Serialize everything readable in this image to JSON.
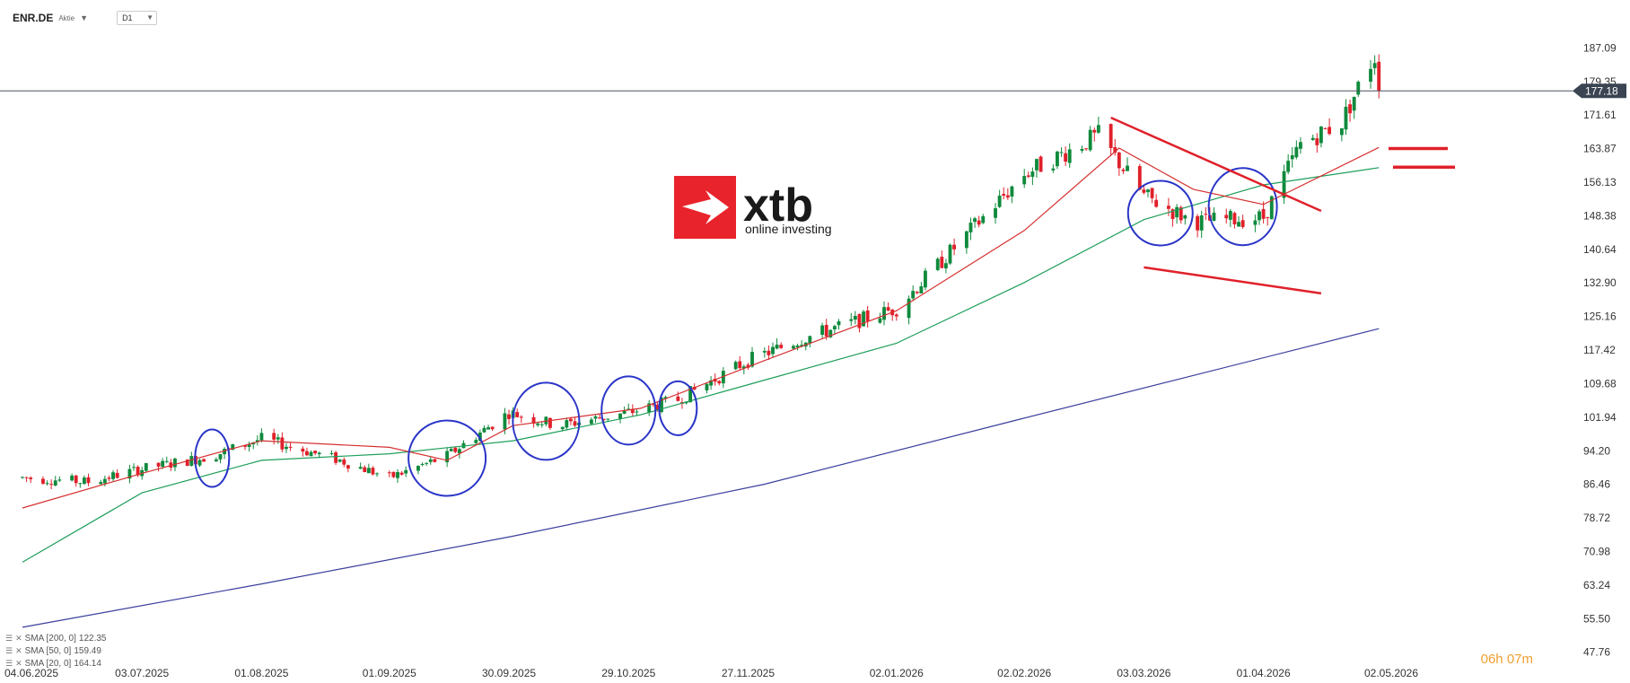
{
  "toolbar": {
    "symbol": "ENR.DE",
    "instrument_type": "Aktie",
    "timeframe": "D1"
  },
  "logo": {
    "brand": "xtb",
    "tagline": "online investing",
    "accent_color": "#e8232b"
  },
  "legend": [
    {
      "label": "SMA [200, 0]",
      "value": "122.35",
      "color": "#3a3f9e"
    },
    {
      "label": "SMA [50, 0]",
      "value": "159.49",
      "color": "#1e9e5a"
    },
    {
      "label": "SMA [20, 0]",
      "value": "164.14",
      "color": "#d63030"
    }
  ],
  "countdown": {
    "hours": "06",
    "h_unit": "h",
    "minutes": "07",
    "m_unit": "m"
  },
  "colors": {
    "bull": "#0f8a3c",
    "bear": "#e0202a",
    "sma200": "#3a3f9e",
    "sma50": "#1e9e5a",
    "sma20": "#d63030",
    "annotation_circle": "#2a35c8",
    "annotation_line": "#e0202a",
    "current_price_bg": "#3a4452"
  },
  "chart_data": {
    "type": "candlestick",
    "title": "",
    "y_ticks": [
      47.76,
      55.5,
      63.24,
      70.98,
      78.72,
      86.46,
      94.2,
      101.94,
      109.68,
      117.42,
      125.16,
      132.9,
      140.64,
      148.38,
      156.13,
      163.87,
      171.61,
      179.35,
      187.09
    ],
    "ylim": [
      45.0,
      194.0
    ],
    "x_ticks": [
      "04.06.2025",
      "03.07.2025",
      "01.08.2025",
      "01.09.2025",
      "30.09.2025",
      "29.10.2025",
      "27.11.2025",
      "02.01.2026",
      "02.02.2026",
      "03.03.2026",
      "01.04.2026",
      "02.05.2026"
    ],
    "current_price": 177.18,
    "candle_trend": [
      [
        "2025-06-04",
        88
      ],
      [
        "2025-06-20",
        87
      ],
      [
        "2025-07-03",
        90
      ],
      [
        "2025-07-20",
        93
      ],
      [
        "2025-08-01",
        97
      ],
      [
        "2025-08-20",
        92
      ],
      [
        "2025-09-01",
        88
      ],
      [
        "2025-09-15",
        93
      ],
      [
        "2025-09-30",
        103
      ],
      [
        "2025-10-12",
        100
      ],
      [
        "2025-10-29",
        103
      ],
      [
        "2025-11-10",
        106
      ],
      [
        "2025-11-27",
        115
      ],
      [
        "2025-12-10",
        120
      ],
      [
        "2026-01-02",
        127
      ],
      [
        "2026-01-20",
        145
      ],
      [
        "2026-02-02",
        158
      ],
      [
        "2026-02-20",
        167
      ],
      [
        "2026-03-03",
        153
      ],
      [
        "2026-03-15",
        147
      ],
      [
        "2026-04-01",
        148
      ],
      [
        "2026-04-10",
        165
      ],
      [
        "2026-04-20",
        170
      ],
      [
        "2026-04-26",
        182
      ],
      [
        "2026-04-28",
        185
      ],
      [
        "2026-04-29",
        177.18
      ]
    ],
    "series": [
      {
        "name": "SMA [200, 0]",
        "points": [
          [
            "2025-06-04",
            53.5
          ],
          [
            "2025-08-01",
            63.5
          ],
          [
            "2025-10-01",
            74.5
          ],
          [
            "2025-12-01",
            86.5
          ],
          [
            "2026-02-01",
            101.5
          ],
          [
            "2026-04-29",
            122.35
          ]
        ]
      },
      {
        "name": "SMA [50, 0]",
        "points": [
          [
            "2025-06-04",
            68.5
          ],
          [
            "2025-07-03",
            84.5
          ],
          [
            "2025-08-01",
            92.0
          ],
          [
            "2025-09-01",
            93.5
          ],
          [
            "2025-10-01",
            96.5
          ],
          [
            "2025-11-01",
            102.5
          ],
          [
            "2025-12-01",
            110.5
          ],
          [
            "2026-01-02",
            119.0
          ],
          [
            "2026-02-02",
            133.0
          ],
          [
            "2026-03-03",
            147.5
          ],
          [
            "2026-04-01",
            155.5
          ],
          [
            "2026-04-29",
            159.49
          ]
        ]
      },
      {
        "name": "SMA [20, 0]",
        "points": [
          [
            "2025-06-04",
            81.0
          ],
          [
            "2025-07-03",
            89.0
          ],
          [
            "2025-08-01",
            96.5
          ],
          [
            "2025-09-01",
            95.0
          ],
          [
            "2025-09-15",
            92.0
          ],
          [
            "2025-10-01",
            100.0
          ],
          [
            "2025-11-01",
            104.0
          ],
          [
            "2025-12-01",
            115.0
          ],
          [
            "2026-01-02",
            126.5
          ],
          [
            "2026-02-02",
            145.0
          ],
          [
            "2026-02-25",
            164.0
          ],
          [
            "2026-03-15",
            154.5
          ],
          [
            "2026-04-01",
            151.0
          ],
          [
            "2026-04-29",
            164.14
          ]
        ]
      }
    ],
    "annotations": {
      "circles": [
        [
          "2025-07-20",
          92.5
        ],
        [
          "2025-09-15",
          92.5
        ],
        [
          "2025-10-09",
          101.0
        ],
        [
          "2025-10-29",
          103.5
        ],
        [
          "2025-11-10",
          104.0
        ],
        [
          "2026-03-07",
          149.0
        ],
        [
          "2026-03-27",
          150.5
        ]
      ],
      "lines": [
        [
          [
            "2026-02-23",
            171.0
          ],
          [
            "2026-04-15",
            149.5
          ]
        ],
        [
          [
            "2026-03-03",
            136.5
          ],
          [
            "2026-04-15",
            130.5
          ]
        ]
      ],
      "marks": [
        163.9,
        159.6
      ]
    }
  }
}
